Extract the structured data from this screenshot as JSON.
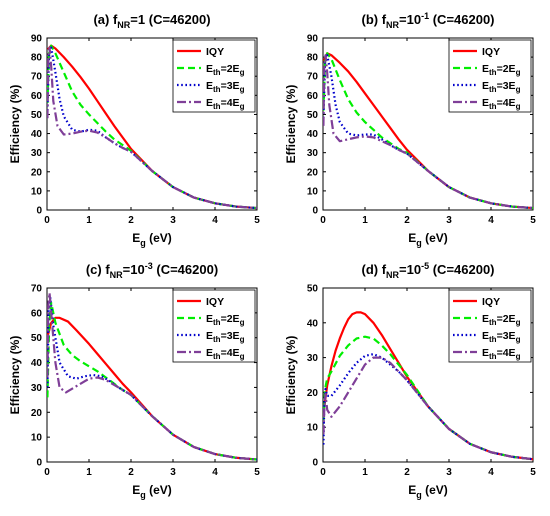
{
  "chart_data": [
    {
      "type": "line",
      "panel_label": "(a)",
      "title": "(a) f_NR=1 (C=46200)",
      "title_parts": {
        "prefix": "(a) f",
        "sub": "NR",
        "mid": "=1",
        "sup": "",
        "suffix": " (C=46200)"
      },
      "xlabel": "E_g (eV)",
      "ylabel": "Efficiency (%)",
      "xlim": [
        0,
        5
      ],
      "ylim": [
        0,
        90
      ],
      "xticks": [
        0,
        1,
        2,
        3,
        4,
        5
      ],
      "yticks": [
        0,
        10,
        20,
        30,
        40,
        50,
        60,
        70,
        80,
        90
      ],
      "legend_position": "top-right",
      "series": [
        {
          "name": "IQY",
          "color": "#ff0000",
          "style": "solid",
          "x": [
            0.02,
            0.1,
            0.2,
            0.4,
            0.6,
            0.8,
            1,
            1.2,
            1.4,
            1.6,
            1.8,
            2,
            2.5,
            3,
            3.5,
            4,
            4.5,
            5
          ],
          "y": [
            84,
            86,
            84.5,
            80,
            75,
            69.5,
            63.5,
            57,
            50.5,
            44,
            38,
            32,
            20.5,
            12,
            6.5,
            3.5,
            1.8,
            1
          ]
        },
        {
          "name": "Eth=2Eg",
          "color": "#00ee00",
          "style": "dash",
          "x": [
            0.01,
            0.05,
            0.1,
            0.2,
            0.4,
            0.6,
            0.8,
            1,
            1.2,
            1.4,
            1.6,
            1.8,
            2,
            2.5,
            3,
            3.5,
            4,
            4.5,
            5
          ],
          "y": [
            56,
            82,
            86,
            82,
            72,
            62,
            55,
            50,
            45.5,
            41,
            37,
            34,
            31,
            20.5,
            12,
            6.5,
            3.5,
            1.8,
            1
          ]
        },
        {
          "name": "Eth=3Eg",
          "color": "#0000cc",
          "style": "dot",
          "x": [
            0.01,
            0.05,
            0.1,
            0.2,
            0.3,
            0.4,
            0.6,
            0.8,
            1,
            1.2,
            1.4,
            1.6,
            1.8,
            2,
            2.5,
            3,
            3.5,
            4,
            4.5,
            5
          ],
          "y": [
            52,
            82,
            85,
            72,
            58,
            49,
            42,
            41,
            42,
            41.5,
            38,
            35,
            32.5,
            30.5,
            20.5,
            12,
            6.5,
            3.5,
            1.8,
            1
          ]
        },
        {
          "name": "Eth=4Eg",
          "color": "#7f3f98",
          "style": "dashdot",
          "x": [
            0.01,
            0.03,
            0.06,
            0.1,
            0.15,
            0.25,
            0.4,
            0.6,
            0.8,
            1,
            1.2,
            1.4,
            1.6,
            1.8,
            2,
            2.5,
            3,
            3.5,
            4,
            4.5,
            5
          ],
          "y": [
            48,
            80,
            85,
            75,
            57,
            44,
            39.5,
            40,
            41,
            41.5,
            40.5,
            38,
            35,
            32.5,
            30.5,
            20.5,
            12,
            6.5,
            3.5,
            1.8,
            1
          ]
        }
      ],
      "legend": [
        "IQY",
        "Eth=2Eg",
        "Eth=3Eg",
        "Eth=4Eg"
      ]
    },
    {
      "type": "line",
      "panel_label": "(b)",
      "title": "(b) f_NR=10^-1 (C=46200)",
      "title_parts": {
        "prefix": "(b) f",
        "sub": "NR",
        "mid": "=10",
        "sup": "-1",
        "suffix": " (C=46200)"
      },
      "xlabel": "E_g (eV)",
      "ylabel": "Efficiency (%)",
      "xlim": [
        0,
        5
      ],
      "ylim": [
        0,
        90
      ],
      "xticks": [
        0,
        1,
        2,
        3,
        4,
        5
      ],
      "yticks": [
        0,
        10,
        20,
        30,
        40,
        50,
        60,
        70,
        80,
        90
      ],
      "legend_position": "top-right",
      "series": [
        {
          "name": "IQY",
          "color": "#ff0000",
          "style": "solid",
          "x": [
            0.02,
            0.1,
            0.2,
            0.4,
            0.6,
            0.8,
            1,
            1.2,
            1.4,
            1.6,
            1.8,
            2,
            2.5,
            3,
            3.5,
            4,
            4.5,
            5
          ],
          "y": [
            78,
            82,
            81,
            77,
            72.5,
            67,
            61,
            55,
            49,
            43,
            37,
            31.5,
            20.5,
            12,
            6.5,
            3.5,
            1.8,
            1
          ]
        },
        {
          "name": "Eth=2Eg",
          "color": "#00ee00",
          "style": "dash",
          "x": [
            0.01,
            0.05,
            0.1,
            0.2,
            0.4,
            0.6,
            0.8,
            1,
            1.2,
            1.4,
            1.6,
            1.8,
            2,
            2.5,
            3,
            3.5,
            4,
            4.5,
            5
          ],
          "y": [
            52,
            78,
            82,
            79,
            68,
            58,
            51,
            46,
            42,
            38,
            35,
            32,
            30,
            20.5,
            12,
            6.5,
            3.5,
            1.8,
            1
          ]
        },
        {
          "name": "Eth=3Eg",
          "color": "#0000cc",
          "style": "dot",
          "x": [
            0.01,
            0.05,
            0.1,
            0.2,
            0.3,
            0.4,
            0.6,
            0.8,
            1,
            1.2,
            1.4,
            1.6,
            1.8,
            2,
            2.5,
            3,
            3.5,
            4,
            4.5,
            5
          ],
          "y": [
            48,
            78,
            81,
            70,
            55,
            46,
            40,
            39,
            39.5,
            39.5,
            37,
            34,
            31.5,
            29.5,
            20.5,
            12,
            6.5,
            3.5,
            1.8,
            1
          ]
        },
        {
          "name": "Eth=4Eg",
          "color": "#7f3f98",
          "style": "dashdot",
          "x": [
            0.01,
            0.03,
            0.06,
            0.1,
            0.15,
            0.25,
            0.4,
            0.6,
            0.8,
            1,
            1.2,
            1.4,
            1.6,
            1.8,
            2,
            2.5,
            3,
            3.5,
            4,
            4.5,
            5
          ],
          "y": [
            44,
            76,
            81,
            72,
            55,
            40,
            36,
            37,
            38,
            38.5,
            38,
            36,
            34,
            31.5,
            29.5,
            20.5,
            12,
            6.5,
            3.5,
            1.8,
            1
          ]
        }
      ],
      "legend": [
        "IQY",
        "Eth=2Eg",
        "Eth=3Eg",
        "Eth=4Eg"
      ]
    },
    {
      "type": "line",
      "panel_label": "(c)",
      "title": "(c) f_NR=10^-3 (C=46200)",
      "title_parts": {
        "prefix": "(c) f",
        "sub": "NR",
        "mid": "=10",
        "sup": "-3",
        "suffix": " (C=46200)"
      },
      "xlabel": "E_g (eV)",
      "ylabel": "Efficiency (%)",
      "xlim": [
        0,
        5
      ],
      "ylim": [
        0,
        70
      ],
      "xticks": [
        0,
        1,
        2,
        3,
        4,
        5
      ],
      "yticks": [
        0,
        10,
        20,
        30,
        40,
        50,
        60,
        70
      ],
      "legend_position": "top-right",
      "series": [
        {
          "name": "IQY",
          "color": "#ff0000",
          "style": "solid",
          "x": [
            0.02,
            0.1,
            0.2,
            0.3,
            0.5,
            0.7,
            1,
            1.2,
            1.4,
            1.6,
            1.8,
            2,
            2.5,
            3,
            3.5,
            4,
            4.5,
            5
          ],
          "y": [
            51,
            56,
            58,
            58,
            56.5,
            53,
            47.5,
            43.5,
            39.5,
            35.5,
            31.5,
            28,
            18.5,
            11,
            6,
            3.2,
            1.7,
            1
          ]
        },
        {
          "name": "Eth=2Eg",
          "color": "#00ee00",
          "style": "dash",
          "x": [
            0.01,
            0.05,
            0.1,
            0.2,
            0.4,
            0.6,
            0.8,
            1,
            1.2,
            1.4,
            1.6,
            1.8,
            2,
            2.5,
            3,
            3.5,
            4,
            4.5,
            5
          ],
          "y": [
            26,
            55,
            64,
            56,
            47,
            43,
            40.5,
            38.5,
            36.5,
            34,
            31.5,
            29,
            27,
            18.5,
            11,
            6,
            3.2,
            1.7,
            1
          ]
        },
        {
          "name": "Eth=3Eg",
          "color": "#0000cc",
          "style": "dot",
          "x": [
            0.01,
            0.04,
            0.08,
            0.15,
            0.3,
            0.5,
            0.7,
            0.9,
            1.1,
            1.3,
            1.5,
            1.7,
            1.9,
            2,
            2.5,
            3,
            3.5,
            4,
            4.5,
            5
          ],
          "y": [
            30,
            62,
            66,
            55,
            40,
            34.5,
            33.5,
            34.5,
            35,
            34.5,
            32.5,
            30,
            28,
            27,
            18.5,
            11,
            6,
            3.2,
            1.7,
            1
          ]
        },
        {
          "name": "Eth=4Eg",
          "color": "#7f3f98",
          "style": "dashdot",
          "x": [
            0.01,
            0.03,
            0.06,
            0.1,
            0.2,
            0.3,
            0.45,
            0.6,
            0.8,
            1,
            1.2,
            1.4,
            1.6,
            1.8,
            2,
            2.5,
            3,
            3.5,
            4,
            4.5,
            5
          ],
          "y": [
            34,
            63,
            68,
            60,
            40,
            30,
            28,
            29.5,
            31.5,
            33.5,
            34,
            33,
            31,
            29,
            27,
            18.5,
            11,
            6,
            3.2,
            1.7,
            1
          ]
        }
      ],
      "legend": [
        "IQY",
        "Eth=2Eg",
        "Eth=3Eg",
        "Eth=4Eg"
      ]
    },
    {
      "type": "line",
      "panel_label": "(d)",
      "title": "(d) f_NR=10^-5 (C=46200)",
      "title_parts": {
        "prefix": "(d) f",
        "sub": "NR",
        "mid": "=10",
        "sup": "-5",
        "suffix": " (C=46200)"
      },
      "xlabel": "E_g (eV)",
      "ylabel": "Efficiency (%)",
      "xlim": [
        0,
        5
      ],
      "ylim": [
        0,
        50
      ],
      "xticks": [
        0,
        1,
        2,
        3,
        4,
        5
      ],
      "yticks": [
        0,
        10,
        20,
        30,
        40,
        50
      ],
      "legend_position": "top-right",
      "series": [
        {
          "name": "IQY",
          "color": "#ff0000",
          "style": "solid",
          "x": [
            0.02,
            0.1,
            0.2,
            0.3,
            0.4,
            0.5,
            0.6,
            0.7,
            0.8,
            0.9,
            1,
            1.2,
            1.4,
            1.6,
            1.8,
            2,
            2.5,
            3,
            3.5,
            4,
            4.5,
            5
          ],
          "y": [
            15,
            22,
            27.5,
            32,
            35.5,
            38.5,
            41,
            42.5,
            43,
            43,
            42.5,
            40,
            36.5,
            32.5,
            28.5,
            24.5,
            16,
            9.5,
            5.2,
            2.8,
            1.5,
            0.8
          ]
        },
        {
          "name": "Eth=2Eg",
          "color": "#00ee00",
          "style": "dash",
          "x": [
            0.01,
            0.05,
            0.1,
            0.2,
            0.4,
            0.6,
            0.8,
            1,
            1.2,
            1.4,
            1.6,
            1.8,
            2,
            2.5,
            3,
            3.5,
            4,
            4.5,
            5
          ],
          "y": [
            12,
            21,
            24,
            26,
            30.5,
            33.5,
            35.5,
            36,
            35.5,
            33.5,
            31,
            28,
            25,
            16,
            9.5,
            5.2,
            2.8,
            1.5,
            0.8
          ]
        },
        {
          "name": "Eth=3Eg",
          "color": "#0000cc",
          "style": "dot",
          "x": [
            0.01,
            0.03,
            0.06,
            0.1,
            0.2,
            0.4,
            0.6,
            0.8,
            1,
            1.2,
            1.4,
            1.6,
            1.8,
            2,
            2.5,
            3,
            3.5,
            4,
            4.5,
            5
          ],
          "y": [
            5,
            16,
            21,
            19,
            19,
            22,
            25.5,
            28.5,
            30.5,
            31,
            30,
            28,
            26,
            23.5,
            16,
            9.5,
            5.2,
            2.8,
            1.5,
            0.8
          ]
        },
        {
          "name": "Eth=4Eg",
          "color": "#7f3f98",
          "style": "dashdot",
          "x": [
            0.01,
            0.03,
            0.06,
            0.1,
            0.2,
            0.4,
            0.6,
            0.8,
            1,
            1.2,
            1.4,
            1.6,
            1.8,
            2,
            2.5,
            3,
            3.5,
            4,
            4.5,
            5
          ],
          "y": [
            8,
            15,
            19.5,
            15,
            13,
            16,
            20,
            24,
            28,
            30,
            30,
            28.5,
            26,
            23.5,
            16,
            9.5,
            5.2,
            2.8,
            1.5,
            0.8
          ]
        }
      ],
      "legend": [
        "IQY",
        "Eth=2Eg",
        "Eth=3Eg",
        "Eth=4Eg"
      ]
    }
  ]
}
